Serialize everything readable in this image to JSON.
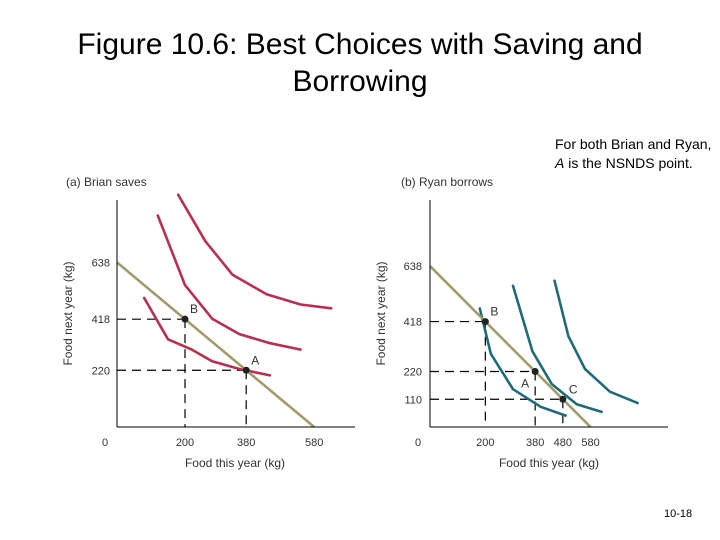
{
  "title": "Figure 10.6: Best Choices with Saving and Borrowing",
  "note_parts": [
    "For both Brian and Ryan, ",
    "A",
    " is the NSNDS point."
  ],
  "slide_number": "10-18",
  "colors": {
    "budget_line": "#a39b6a",
    "brian_curves": "#b8304f",
    "ryan_curves": "#1f6b7a",
    "points": "#222222"
  },
  "chart_data": [
    {
      "type": "line",
      "title": "(a) Brian saves",
      "xlabel": "Food this year (kg)",
      "ylabel": "Food next year (kg)",
      "origin_label": "0",
      "x_ticks": [
        200,
        380,
        580
      ],
      "y_ticks": [
        220,
        418,
        638
      ],
      "xlim": [
        0,
        700
      ],
      "ylim": [
        0,
        880
      ],
      "budget_line": [
        [
          0,
          638
        ],
        [
          580,
          0
        ]
      ],
      "points": [
        {
          "label": "B",
          "x": 200,
          "y": 418
        },
        {
          "label": "A",
          "x": 380,
          "y": 220
        }
      ],
      "indifference_curves": [
        [
          [
            80,
            500
          ],
          [
            150,
            340
          ],
          [
            220,
            300
          ],
          [
            280,
            255
          ],
          [
            360,
            225
          ],
          [
            450,
            200
          ]
        ],
        [
          [
            120,
            820
          ],
          [
            200,
            550
          ],
          [
            280,
            420
          ],
          [
            360,
            360
          ],
          [
            450,
            325
          ],
          [
            540,
            300
          ]
        ],
        [
          [
            180,
            900
          ],
          [
            260,
            720
          ],
          [
            340,
            590
          ],
          [
            440,
            515
          ],
          [
            540,
            475
          ],
          [
            630,
            460
          ]
        ]
      ]
    },
    {
      "type": "line",
      "title": "(b) Ryan borrows",
      "xlabel": "Food this year (kg)",
      "ylabel": "Food next year (kg)",
      "origin_label": "0",
      "x_ticks": [
        200,
        380,
        480,
        580
      ],
      "y_ticks": [
        110,
        220,
        418,
        638
      ],
      "xlim": [
        0,
        860
      ],
      "ylim": [
        0,
        900
      ],
      "budget_line": [
        [
          0,
          638
        ],
        [
          580,
          0
        ]
      ],
      "points": [
        {
          "label": "B",
          "x": 200,
          "y": 418
        },
        {
          "label": "A",
          "x": 380,
          "y": 220
        },
        {
          "label": "C",
          "x": 480,
          "y": 110
        }
      ],
      "indifference_curves": [
        [
          [
            180,
            470
          ],
          [
            220,
            290
          ],
          [
            300,
            150
          ],
          [
            400,
            80
          ],
          [
            490,
            45
          ]
        ],
        [
          [
            300,
            560
          ],
          [
            370,
            300
          ],
          [
            440,
            170
          ],
          [
            530,
            90
          ],
          [
            620,
            60
          ]
        ],
        [
          [
            450,
            580
          ],
          [
            500,
            360
          ],
          [
            560,
            230
          ],
          [
            650,
            140
          ],
          [
            750,
            95
          ]
        ]
      ]
    }
  ]
}
